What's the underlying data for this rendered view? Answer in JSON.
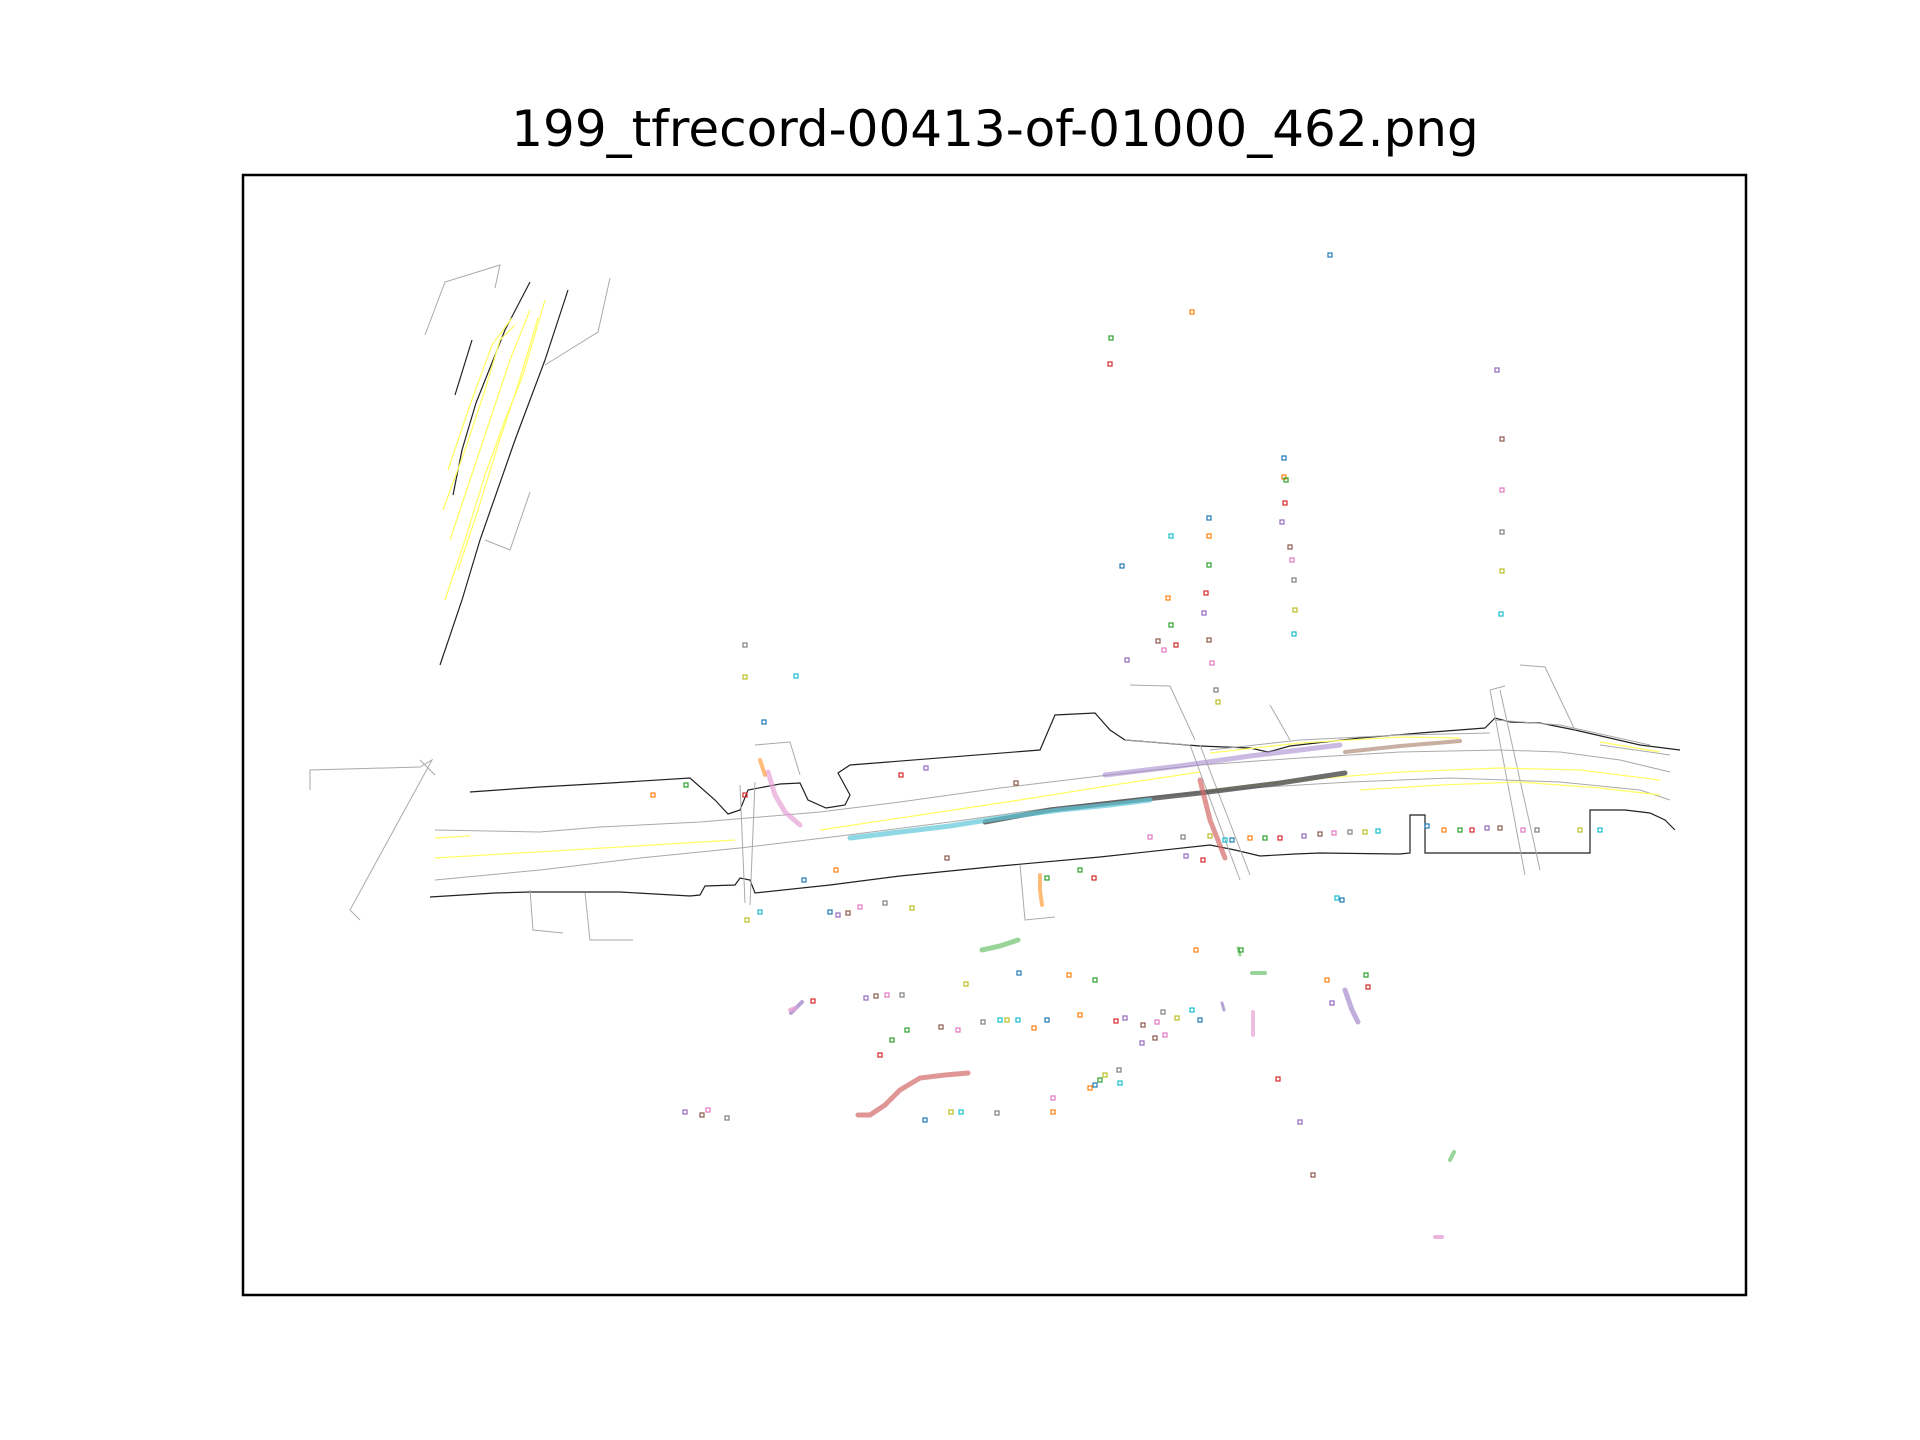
{
  "title": "199_tfrecord-00413-of-01000_462.png",
  "colors": {
    "frame": "#000000",
    "road_edge": "#222222",
    "lane_gray": "#aaaaaa",
    "lane_yellow": "#ffff66",
    "traj_gray": "#555555",
    "traj_cyan": "#5cc8d8",
    "traj_purple": "#a78bcc",
    "traj_brown": "#b08d7a",
    "traj_red": "#d46a6a",
    "traj_pink": "#e6a3d6",
    "traj_orange": "#ffa040",
    "traj_green": "#7fc97f",
    "point_palette": [
      "#1f77b4",
      "#ff7f0e",
      "#2ca02c",
      "#d62728",
      "#9467bd",
      "#8c564b",
      "#e377c2",
      "#7f7f7f",
      "#bcbd22",
      "#17becf"
    ]
  },
  "legend": []
}
